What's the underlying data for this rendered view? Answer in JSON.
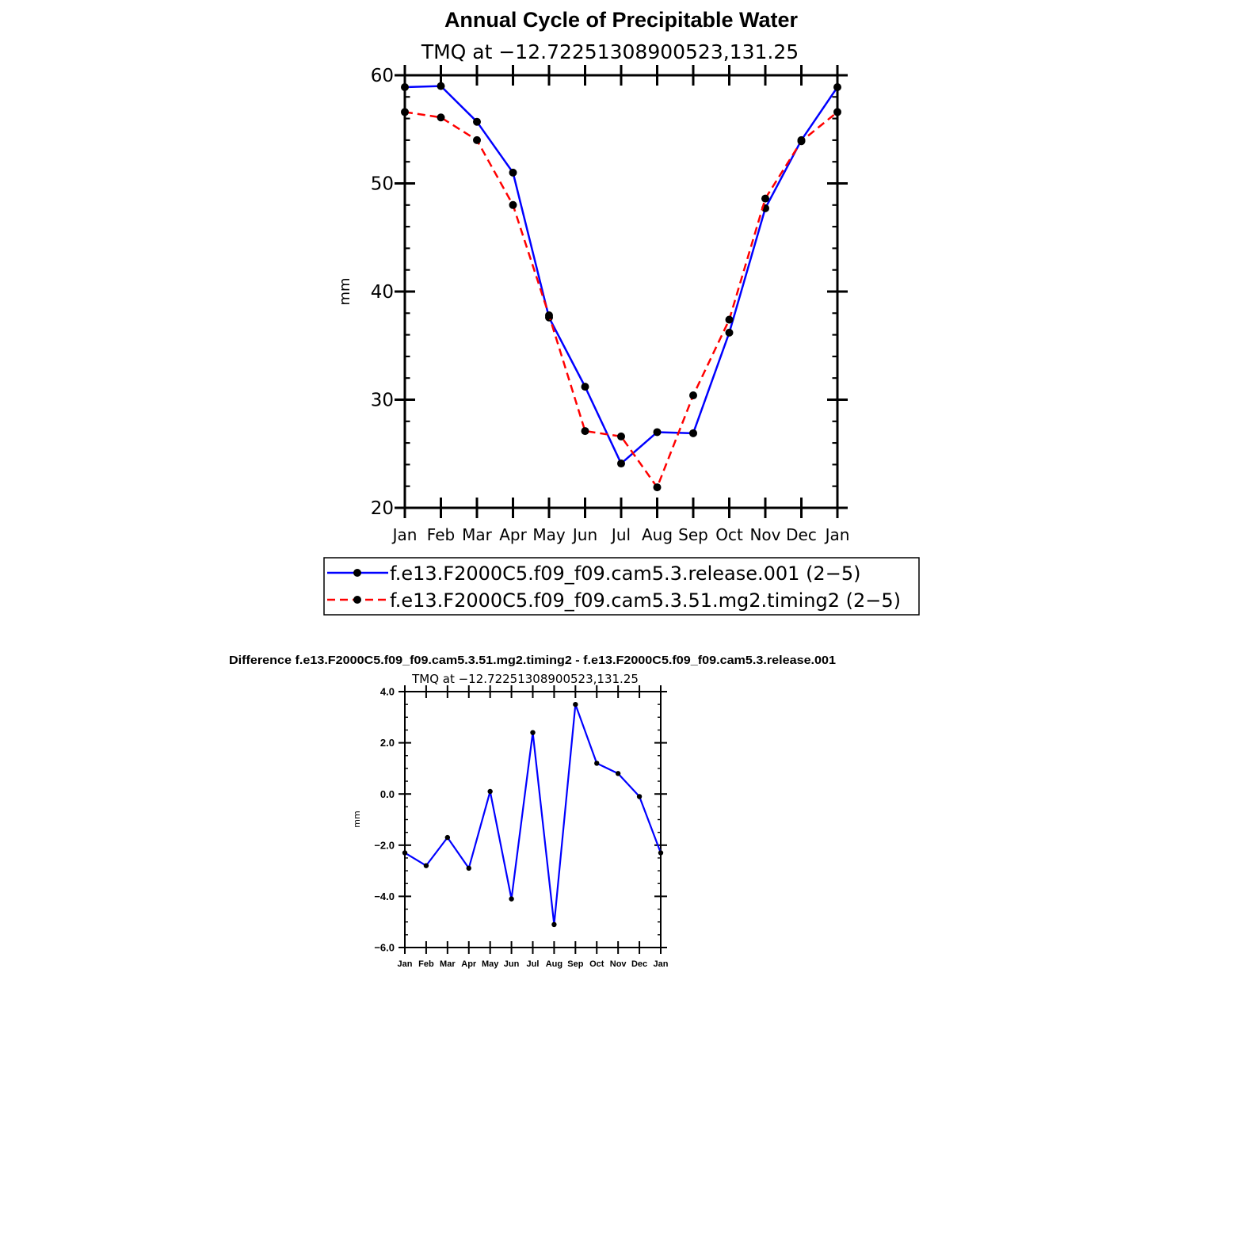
{
  "chart_data": [
    {
      "type": "line",
      "title": "Annual Cycle of Precipitable Water",
      "subtitle": "TMQ  at  −12.72251308900523,131.25",
      "ylabel": "mm",
      "categories": [
        "Jan",
        "Feb",
        "Mar",
        "Apr",
        "May",
        "Jun",
        "Jul",
        "Aug",
        "Sep",
        "Oct",
        "Nov",
        "Dec",
        "Jan"
      ],
      "yticks": [
        "20",
        "30",
        "40",
        "50",
        "60"
      ],
      "ylim": [
        20,
        60
      ],
      "grid": false,
      "legend_position": "bottom",
      "series": [
        {
          "name": "f.e13.F2000C5.f09_f09.cam5.3.release.001 (2−5)",
          "color": "#0000ff",
          "dash": "solid",
          "values": [
            58.9,
            59.0,
            55.7,
            51.0,
            37.6,
            31.2,
            24.1,
            27.0,
            26.9,
            36.2,
            47.7,
            54.0,
            58.9
          ]
        },
        {
          "name": "f.e13.F2000C5.f09_f09.cam5.3.51.mg2.timing2 (2−5)",
          "color": "#ff0000",
          "dash": "dashed",
          "values": [
            56.6,
            56.1,
            54.0,
            48.0,
            37.8,
            27.1,
            26.6,
            21.9,
            30.4,
            37.4,
            48.6,
            53.9,
            56.6
          ]
        }
      ]
    },
    {
      "type": "line",
      "title": "Difference f.e13.F2000C5.f09_f09.cam5.3.51.mg2.timing2 - f.e13.F2000C5.f09_f09.cam5.3.release.001",
      "subtitle": "TMQ  at  −12.72251308900523,131.25",
      "ylabel": "mm",
      "categories": [
        "Jan",
        "Feb",
        "Mar",
        "Apr",
        "May",
        "Jun",
        "Jul",
        "Aug",
        "Sep",
        "Oct",
        "Nov",
        "Dec",
        "Jan"
      ],
      "yticks": [
        "4.0",
        "2.0",
        "0.0",
        "−2.0",
        "−4.0",
        "−6.0"
      ],
      "ylim": [
        -6,
        4
      ],
      "grid": false,
      "series": [
        {
          "color": "#0000ff",
          "dash": "solid",
          "values": [
            -2.3,
            -2.8,
            -1.7,
            -2.9,
            0.1,
            -4.1,
            2.4,
            -5.1,
            3.5,
            1.2,
            0.8,
            -0.1,
            -2.3
          ]
        }
      ]
    }
  ]
}
